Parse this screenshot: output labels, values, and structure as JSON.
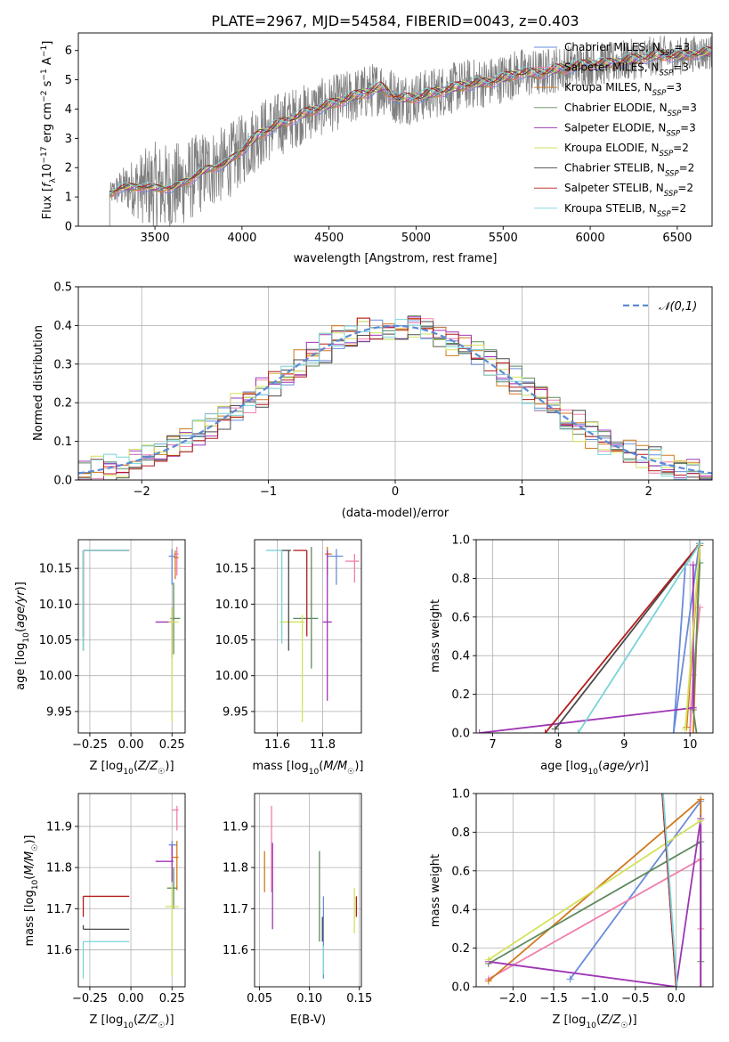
{
  "figure_title": "PLATE=2967, MJD=54584, FIBERID=0043, z=0.403",
  "model_names": [
    "Chabrier MILES",
    "Salpeter MILES",
    "Kroupa MILES",
    "Chabrier ELODIE",
    "Salpeter ELODIE",
    "Kroupa ELODIE",
    "Chabrier STELIB",
    "Salpeter STELIB",
    "Kroupa STELIB"
  ],
  "model_colors": [
    "#6a8bdc",
    "#f07fae",
    "#d2781c",
    "#5e8a5e",
    "#9f35b5",
    "#d3e25c",
    "#4a4a4a",
    "#b31d1d",
    "#79d4d8"
  ],
  "chart_data": [
    {
      "type": "line",
      "title": "PLATE=2967, MJD=54584, FIBERID=0043, z=0.403",
      "xlabel": "wavelength [Angstrom, rest frame]",
      "ylabel": "Flux [f_λ 10^-17 erg cm^-2 s^-1 A^-1]",
      "xlim": [
        3060,
        6700
      ],
      "ylim": [
        0,
        6.6
      ],
      "xticks": [
        3500,
        4000,
        4500,
        5000,
        5500,
        6000,
        6500
      ],
      "yticks": [
        0,
        1,
        2,
        3,
        4,
        5,
        6
      ],
      "grid": false,
      "legend_position": "top-right",
      "data_color": "#808080",
      "data_coverage": [
        3240,
        6700
      ],
      "continuum_anchors": {
        "wavelength": [
          3240,
          3300,
          3400,
          3500,
          3600,
          3700,
          3800,
          3900,
          4000,
          4100,
          4200,
          4300,
          4400,
          4500,
          4600,
          4700,
          4800,
          4900,
          5000,
          5100,
          5200,
          5300,
          5400,
          5500,
          5600,
          5700,
          5800,
          5900,
          6000,
          6100,
          6200,
          6300,
          6400,
          6500,
          6600,
          6700
        ],
        "flux": [
          1.1,
          1.3,
          1.35,
          1.3,
          1.3,
          1.6,
          1.95,
          2.1,
          2.6,
          3.15,
          3.45,
          3.7,
          3.95,
          4.15,
          4.35,
          4.55,
          4.75,
          4.35,
          4.4,
          4.55,
          4.7,
          4.85,
          4.9,
          5.05,
          5.25,
          5.2,
          5.35,
          5.45,
          5.55,
          5.55,
          5.65,
          5.75,
          5.85,
          5.8,
          5.9,
          5.95
        ]
      },
      "noise_ranges": {
        "wavelength": [
          3240,
          3500,
          3900,
          4400,
          5000,
          5600,
          6300,
          6700
        ],
        "amplitude": [
          0.35,
          1.6,
          1.3,
          1.0,
          0.9,
          0.85,
          0.7,
          0.6
        ]
      },
      "series": [
        {
          "name": "Chabrier MILES, N_SSP=3",
          "label_main": "Chabrier MILES, N",
          "label_sub": "SSP",
          "label_tail": "=3"
        },
        {
          "name": "Salpeter MILES, N_SSP=3",
          "label_main": "Salpeter MILES, N",
          "label_sub": "SSP",
          "label_tail": "=3"
        },
        {
          "name": "Kroupa MILES, N_SSP=3",
          "label_main": "Kroupa MILES, N",
          "label_sub": "SSP",
          "label_tail": "=3"
        },
        {
          "name": "Chabrier ELODIE, N_SSP=3",
          "label_main": "Chabrier ELODIE, N",
          "label_sub": "SSP",
          "label_tail": "=3"
        },
        {
          "name": "Salpeter ELODIE, N_SSP=3",
          "label_main": "Salpeter ELODIE, N",
          "label_sub": "SSP",
          "label_tail": "=3"
        },
        {
          "name": "Kroupa ELODIE, N_SSP=2",
          "label_main": "Kroupa ELODIE, N",
          "label_sub": "SSP",
          "label_tail": "=2"
        },
        {
          "name": "Chabrier STELIB, N_SSP=2",
          "label_main": "Chabrier STELIB, N",
          "label_sub": "SSP",
          "label_tail": "=2"
        },
        {
          "name": "Salpeter STELIB, N_SSP=2",
          "label_main": "Salpeter STELIB, N",
          "label_sub": "SSP",
          "label_tail": "=2"
        },
        {
          "name": "Kroupa STELIB, N_SSP=2",
          "label_main": "Kroupa STELIB, N",
          "label_sub": "SSP",
          "label_tail": "=2"
        }
      ]
    },
    {
      "type": "histogram",
      "xlabel": "(data-model)/error",
      "ylabel": "Normed distribution",
      "xlim": [
        -2.5,
        2.5
      ],
      "ylim": [
        0,
        0.5
      ],
      "xticks": [
        -2,
        -1,
        0,
        1,
        2
      ],
      "yticks": [
        0,
        0.1,
        0.2,
        0.3,
        0.4,
        0.5
      ],
      "grid": true,
      "bin_width": 0.1,
      "reference_curve": {
        "name": "𝒩(0,1)",
        "mean": 0,
        "sigma": 1,
        "style": "dashed",
        "color": "#5b8ad6"
      },
      "legend_position": "top-right"
    },
    {
      "type": "scatter",
      "xlabel": "Z [log10(Z/Z☉)]",
      "ylabel": "age [log10(age/yr)]",
      "xlim": [
        -0.32,
        0.33
      ],
      "ylim": [
        9.92,
        10.19
      ],
      "xticks": [
        -0.25,
        0.0,
        0.25
      ],
      "yticks": [
        9.95,
        10.0,
        10.05,
        10.1,
        10.15
      ],
      "grid": true,
      "points": [
        {
          "x": 0.25,
          "y": 10.167,
          "xerr": [
            0.02,
            0.02
          ],
          "yerr": [
            0.04,
            0.01
          ],
          "color": 0
        },
        {
          "x": 0.28,
          "y": 10.17,
          "xerr": [
            0.02,
            0.01
          ],
          "yerr": [
            0.03,
            0.01
          ],
          "color": 1
        },
        {
          "x": 0.27,
          "y": 10.165,
          "xerr": [
            0.01,
            0.02
          ],
          "yerr": [
            0.03,
            0.01
          ],
          "color": 2
        },
        {
          "x": 0.26,
          "y": 10.08,
          "xerr": [
            0.02,
            0.04
          ],
          "yerr": [
            0.05,
            0.05
          ],
          "color": 3
        },
        {
          "x": 0.25,
          "y": 10.075,
          "xerr": [
            0.1,
            0.01
          ],
          "yerr": [
            0.05,
            0.02
          ],
          "color": 4
        },
        {
          "x": 0.25,
          "y": 10.075,
          "xerr": [
            0.02,
            0.04
          ],
          "yerr": [
            0.14,
            0.02
          ],
          "color": 5
        },
        {
          "x": -0.29,
          "y": 10.175,
          "xerr": [
            0.0,
            0.0
          ],
          "yerr": [
            0.14,
            0.0
          ],
          "color": 6
        },
        {
          "x": -0.29,
          "y": 10.175,
          "xerr": [
            0.0,
            0.28
          ],
          "yerr": [
            0.12,
            0.0
          ],
          "color": 7
        },
        {
          "x": -0.29,
          "y": 10.175,
          "xerr": [
            0.0,
            0.28
          ],
          "yerr": [
            0.14,
            0.0
          ],
          "color": 8
        }
      ]
    },
    {
      "type": "scatter",
      "xlabel": "mass [log10(M/M☉)]",
      "ylabel": "",
      "xlim": [
        11.5,
        11.97
      ],
      "ylim": [
        9.92,
        10.19
      ],
      "xticks": [
        11.6,
        11.8
      ],
      "yticks": [
        9.95,
        10.0,
        10.05,
        10.1,
        10.15
      ],
      "grid": true,
      "points": [
        {
          "x": 11.86,
          "y": 10.167,
          "xerr": [
            0.04,
            0.03
          ],
          "yerr": [
            0.04,
            0.01
          ],
          "color": 0
        },
        {
          "x": 11.94,
          "y": 10.16,
          "xerr": [
            0.04,
            0.02
          ],
          "yerr": [
            0.03,
            0.01
          ],
          "color": 1
        },
        {
          "x": 11.82,
          "y": 10.17,
          "xerr": [
            0.01,
            0.02
          ],
          "yerr": [
            0.03,
            0.01
          ],
          "color": 2
        },
        {
          "x": 11.75,
          "y": 10.08,
          "xerr": [
            0.08,
            0.03
          ],
          "yerr": [
            0.07,
            0.1
          ],
          "color": 3
        },
        {
          "x": 11.82,
          "y": 10.075,
          "xerr": [
            0.02,
            0.02
          ],
          "yerr": [
            0.11,
            0.1
          ],
          "color": 4
        },
        {
          "x": 11.71,
          "y": 10.075,
          "xerr": [
            0.1,
            0.01
          ],
          "yerr": [
            0.14,
            0.01
          ],
          "color": 5
        },
        {
          "x": 11.65,
          "y": 10.175,
          "xerr": [
            0.03,
            0.01
          ],
          "yerr": [
            0.14,
            0.0
          ],
          "color": 6
        },
        {
          "x": 11.73,
          "y": 10.175,
          "xerr": [
            0.06,
            0.0
          ],
          "yerr": [
            0.12,
            0.0
          ],
          "color": 7
        },
        {
          "x": 11.62,
          "y": 10.175,
          "xerr": [
            0.07,
            0.0
          ],
          "yerr": [
            0.13,
            0.0
          ],
          "color": 8
        }
      ]
    },
    {
      "type": "line",
      "xlabel": "age [log10(age/yr)]",
      "ylabel": "mass weight",
      "xlim": [
        6.75,
        10.35
      ],
      "ylim": [
        0,
        1.0
      ],
      "xticks": [
        7,
        8,
        9,
        10
      ],
      "yticks": [
        0.0,
        0.2,
        0.4,
        0.6,
        0.8,
        1.0
      ],
      "grid": true,
      "series": [
        {
          "color": 0,
          "x": [
            10.15,
            9.75,
            9.93
          ],
          "y": [
            1.0,
            0.0,
            0.87
          ]
        },
        {
          "color": 1,
          "x": [
            10.15,
            10.05,
            10.0
          ],
          "y": [
            0.65,
            0.3,
            0.0
          ]
        },
        {
          "color": 2,
          "x": [
            10.05,
            10.15,
            9.95
          ],
          "y": [
            0.0,
            0.97,
            0.03
          ]
        },
        {
          "color": 3,
          "x": [
            10.1,
            10.05,
            10.15
          ],
          "y": [
            0.0,
            0.12,
            0.88
          ]
        },
        {
          "color": 4,
          "x": [
            6.8,
            10.05,
            10.05
          ],
          "y": [
            0.0,
            0.13,
            0.87
          ]
        },
        {
          "color": 5,
          "x": [
            9.93,
            10.15
          ],
          "y": [
            0.02,
            0.98
          ]
        },
        {
          "color": 6,
          "x": [
            7.95,
            10.15
          ],
          "y": [
            0.02,
            0.98
          ]
        },
        {
          "color": 7,
          "x": [
            7.8,
            10.15
          ],
          "y": [
            0.0,
            0.98
          ]
        },
        {
          "color": 8,
          "x": [
            8.3,
            10.15
          ],
          "y": [
            0.0,
            0.98
          ]
        }
      ]
    },
    {
      "type": "scatter",
      "xlabel": "Z [log10(Z/Z☉)]",
      "ylabel": "mass [log10(M/M☉)]",
      "xlim": [
        -0.32,
        0.33
      ],
      "ylim": [
        11.51,
        11.98
      ],
      "xticks": [
        -0.25,
        0.0,
        0.25
      ],
      "yticks": [
        11.6,
        11.7,
        11.8,
        11.9
      ],
      "grid": true,
      "points": [
        {
          "x": 0.25,
          "y": 11.855,
          "xerr": [
            0.02,
            0.03
          ],
          "yerr": [
            0.04,
            0.01
          ],
          "color": 0
        },
        {
          "x": 0.28,
          "y": 11.94,
          "xerr": [
            0.03,
            0.01
          ],
          "yerr": [
            0.05,
            0.01
          ],
          "color": 1
        },
        {
          "x": 0.28,
          "y": 11.825,
          "xerr": [
            0.03,
            0.01
          ],
          "yerr": [
            0.08,
            0.04
          ],
          "color": 2
        },
        {
          "x": 0.26,
          "y": 11.75,
          "xerr": [
            0.04,
            0.02
          ],
          "yerr": [
            0.05,
            0.05
          ],
          "color": 3
        },
        {
          "x": 0.25,
          "y": 11.815,
          "xerr": [
            0.1,
            0.01
          ],
          "yerr": [
            0.05,
            0.04
          ],
          "color": 4
        },
        {
          "x": 0.25,
          "y": 11.705,
          "xerr": [
            0.04,
            0.04
          ],
          "yerr": [
            0.17,
            0.05
          ],
          "color": 5
        },
        {
          "x": -0.29,
          "y": 11.65,
          "xerr": [
            0.0,
            0.28
          ],
          "yerr": [
            0.0,
            0.01
          ],
          "color": 6
        },
        {
          "x": -0.29,
          "y": 11.73,
          "xerr": [
            0.0,
            0.28
          ],
          "yerr": [
            0.05,
            0.0
          ],
          "color": 7
        },
        {
          "x": -0.29,
          "y": 11.62,
          "xerr": [
            0.0,
            0.28
          ],
          "yerr": [
            0.09,
            0.0
          ],
          "color": 8
        }
      ]
    },
    {
      "type": "scatter",
      "xlabel": "E(B-V)",
      "ylabel": "",
      "xlim": [
        0.045,
        0.152
      ],
      "ylim": [
        11.51,
        11.98
      ],
      "xticks": [
        0.05,
        0.1,
        0.15
      ],
      "yticks": [
        11.6,
        11.7,
        11.8,
        11.9
      ],
      "grid": true,
      "points": [
        {
          "x": 0.114,
          "y": 11.63,
          "xerr": [
            0,
            0
          ],
          "yerr": [
            0.1,
            0.1
          ],
          "color": 0
        },
        {
          "x": 0.062,
          "y": 11.85,
          "xerr": [
            0,
            0
          ],
          "yerr": [
            0.11,
            0.1
          ],
          "color": 1
        },
        {
          "x": 0.055,
          "y": 11.79,
          "xerr": [
            0,
            0
          ],
          "yerr": [
            0.05,
            0.05
          ],
          "color": 2
        },
        {
          "x": 0.11,
          "y": 11.73,
          "xerr": [
            0,
            0
          ],
          "yerr": [
            0.11,
            0.11
          ],
          "color": 3
        },
        {
          "x": 0.063,
          "y": 11.76,
          "xerr": [
            0,
            0
          ],
          "yerr": [
            0.11,
            0.1
          ],
          "color": 4
        },
        {
          "x": 0.145,
          "y": 11.7,
          "xerr": [
            0,
            0
          ],
          "yerr": [
            0.06,
            0.05
          ],
          "color": 5
        },
        {
          "x": 0.113,
          "y": 11.62,
          "xerr": [
            0,
            0
          ],
          "yerr": [
            0.0,
            0.06
          ],
          "color": 6
        },
        {
          "x": 0.147,
          "y": 11.71,
          "xerr": [
            0,
            0
          ],
          "yerr": [
            0.03,
            0.02
          ],
          "color": 7
        },
        {
          "x": 0.114,
          "y": 11.6,
          "xerr": [
            0,
            0
          ],
          "yerr": [
            0.06,
            0.01
          ],
          "color": 8
        }
      ]
    },
    {
      "type": "line",
      "xlabel": "Z [log10(Z/Z☉)]",
      "ylabel": "mass weight",
      "xlim": [
        -2.45,
        0.45
      ],
      "ylim": [
        0,
        1.0
      ],
      "xticks": [
        -2.0,
        -1.5,
        -1.0,
        -0.5,
        0.0
      ],
      "yticks": [
        0.0,
        0.2,
        0.4,
        0.6,
        0.8,
        1.0
      ],
      "grid": true,
      "series": [
        {
          "color": 0,
          "x": [
            -1.3,
            0.3,
            0.3
          ],
          "y": [
            0.04,
            0.96,
            0.0
          ]
        },
        {
          "color": 1,
          "x": [
            -2.3,
            0.3,
            0.3
          ],
          "y": [
            0.04,
            0.66,
            0.3
          ]
        },
        {
          "color": 2,
          "x": [
            -2.3,
            0.3,
            0.3
          ],
          "y": [
            0.03,
            0.97,
            0.0
          ]
        },
        {
          "color": 3,
          "x": [
            -2.3,
            0.3,
            0.3
          ],
          "y": [
            0.12,
            0.75,
            0.13
          ]
        },
        {
          "color": 4,
          "x": [
            -2.3,
            0.0,
            0.3,
            0.3
          ],
          "y": [
            0.13,
            0.0,
            0.87,
            0.0
          ]
        },
        {
          "color": 5,
          "x": [
            -2.3,
            0.3
          ],
          "y": [
            0.14,
            0.86
          ]
        },
        {
          "color": 6,
          "x": [
            -0.17,
            0.0
          ],
          "y": [
            1.0,
            0.0
          ]
        },
        {
          "color": 7,
          "x": [
            -0.17,
            0.0
          ],
          "y": [
            1.0,
            0.0
          ]
        },
        {
          "color": 8,
          "x": [
            -0.16,
            0.01
          ],
          "y": [
            1.0,
            0.0
          ]
        }
      ]
    }
  ]
}
